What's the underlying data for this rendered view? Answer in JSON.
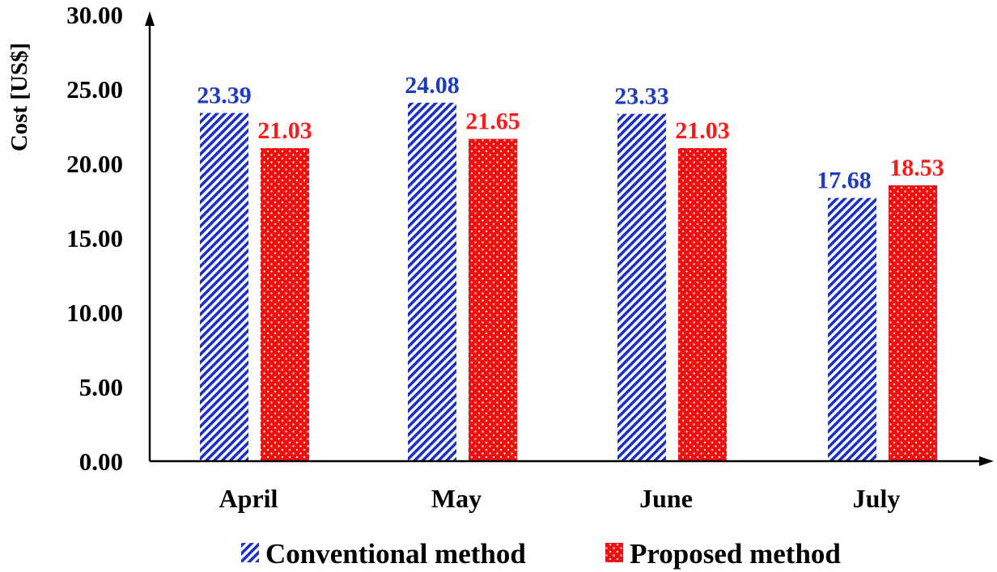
{
  "chart_data": {
    "type": "bar",
    "title": "",
    "xlabel": "",
    "ylabel": "Cost [US$]",
    "ylim": [
      0,
      30
    ],
    "yticks": [
      "0.00",
      "5.00",
      "10.00",
      "15.00",
      "20.00",
      "25.00",
      "30.00"
    ],
    "categories": [
      "April",
      "May",
      "June",
      "July"
    ],
    "series": [
      {
        "name": "Conventional method",
        "values": [
          23.39,
          24.08,
          23.33,
          17.68
        ],
        "labels": [
          "23.39",
          "24.08",
          "23.33",
          "17.68"
        ],
        "color": "#1a2fc8",
        "label_color": "#1f3bbf",
        "pattern": "diagonal-stripes"
      },
      {
        "name": "Proposed method",
        "values": [
          21.03,
          21.65,
          21.03,
          18.53
        ],
        "labels": [
          "21.03",
          "21.65",
          "21.03",
          "18.53"
        ],
        "color": "#f01010",
        "label_color": "#ff1a1a",
        "pattern": "white-dots"
      }
    ],
    "legend_position": "bottom"
  }
}
